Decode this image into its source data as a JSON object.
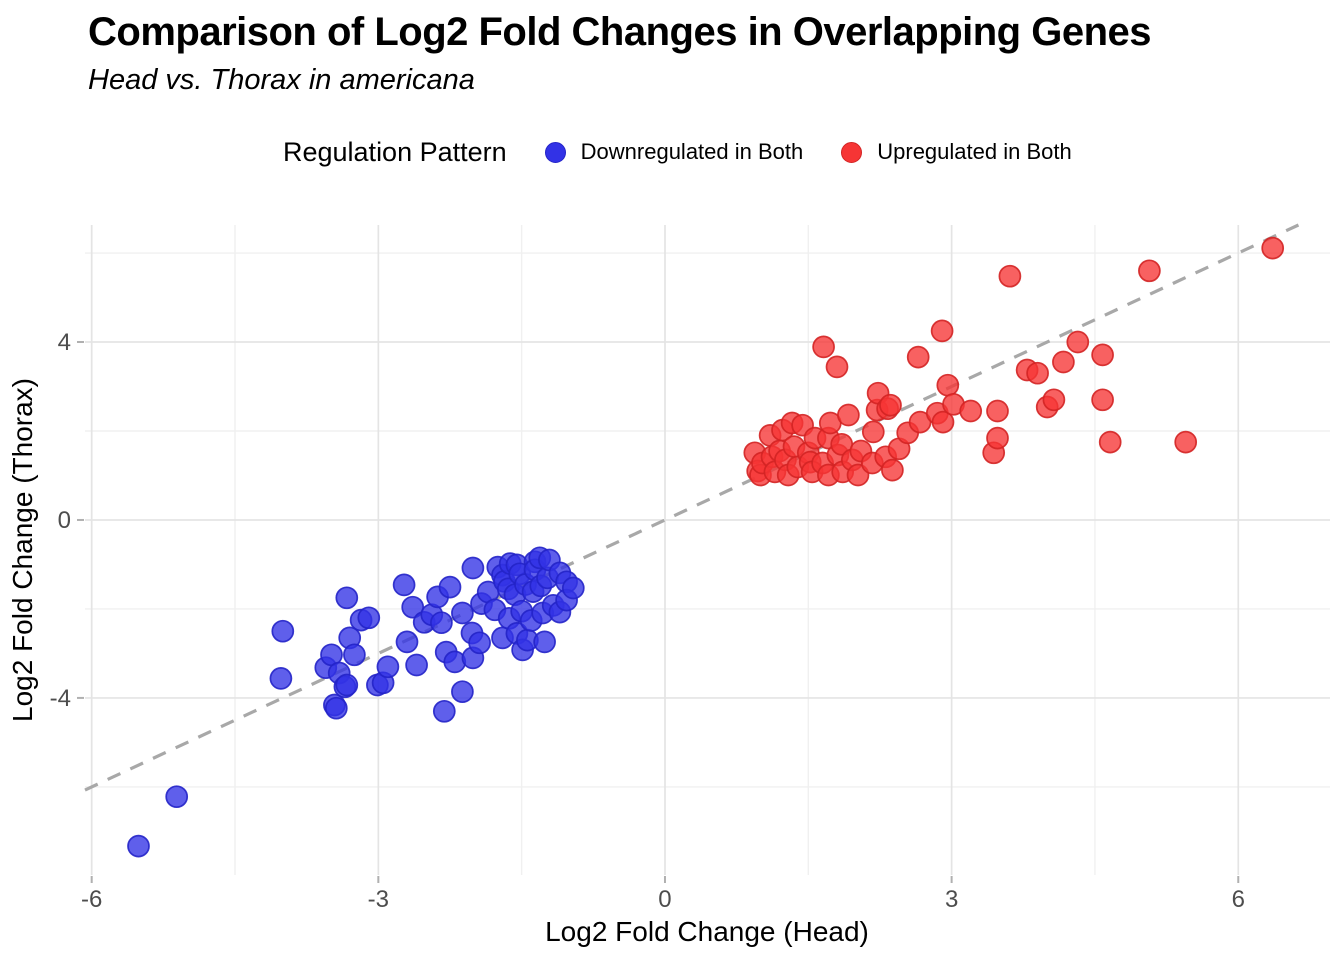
{
  "header": {
    "title": "Comparison of Log2 Fold Changes in Overlapping Genes",
    "subtitle": "Head vs. Thorax in americana"
  },
  "legend": {
    "title": "Regulation Pattern",
    "items": [
      {
        "label": "Downregulated in Both",
        "color": "#3232E6",
        "border": "#2424C8"
      },
      {
        "label": "Upregulated in Both",
        "color": "#F63535",
        "border": "#D32424"
      }
    ]
  },
  "colors": {
    "background": "#FFFFFF",
    "grid_major": "#E4E4E4",
    "grid_minor": "#F0F0F0",
    "tick_mark": "#B0B0B0",
    "tick_label": "#4D4D4D",
    "reference_line": "#A8A8A8"
  },
  "chart_data": {
    "type": "scatter",
    "title": "Comparison of Log2 Fold Changes in Overlapping Genes",
    "subtitle": "Head vs. Thorax in americana",
    "xlabel": "Log2 Fold Change (Head)",
    "ylabel": "Log2 Fold Change (Thorax)",
    "xlim": [
      -6.07,
      6.96
    ],
    "ylim": [
      -7.98,
      6.63
    ],
    "x_ticks": [
      -6,
      -3,
      0,
      3,
      6
    ],
    "y_ticks": [
      -4,
      0,
      4
    ],
    "x_minor_ticks": [
      -4.5,
      -1.5,
      1.5,
      4.5
    ],
    "y_minor_ticks": [
      -6,
      -2,
      2,
      6
    ],
    "grid": true,
    "legend_position": "top",
    "reference_line": {
      "style": "dashed",
      "slope": 1,
      "intercept": 0
    },
    "point_radius_px": 10.5,
    "point_fill_opacity": 0.78,
    "series": [
      {
        "name": "Downregulated in Both",
        "color": "#3232E6",
        "stroke": "#2424C8",
        "points": [
          [
            -5.51,
            -7.33
          ],
          [
            -5.11,
            -6.22
          ],
          [
            -4.0,
            -2.5
          ],
          [
            -4.02,
            -3.56
          ],
          [
            -3.55,
            -3.32
          ],
          [
            -3.49,
            -3.03
          ],
          [
            -3.46,
            -4.16
          ],
          [
            -3.44,
            -4.23
          ],
          [
            -3.41,
            -3.44
          ],
          [
            -3.35,
            -3.75
          ],
          [
            -3.33,
            -1.75
          ],
          [
            -3.33,
            -3.71
          ],
          [
            -3.3,
            -2.65
          ],
          [
            -3.25,
            -3.03
          ],
          [
            -3.18,
            -2.25
          ],
          [
            -3.1,
            -2.2
          ],
          [
            -3.01,
            -3.71
          ],
          [
            -2.95,
            -3.66
          ],
          [
            -2.9,
            -3.3
          ],
          [
            -2.73,
            -1.46
          ],
          [
            -2.7,
            -2.74
          ],
          [
            -2.64,
            -1.96
          ],
          [
            -2.6,
            -3.26
          ],
          [
            -2.52,
            -2.3
          ],
          [
            -2.44,
            -2.13
          ],
          [
            -2.38,
            -1.73
          ],
          [
            -2.34,
            -2.31
          ],
          [
            -2.31,
            -4.3
          ],
          [
            -2.29,
            -2.97
          ],
          [
            -2.25,
            -1.51
          ],
          [
            -2.2,
            -3.19
          ],
          [
            -2.12,
            -2.09
          ],
          [
            -2.12,
            -3.86
          ],
          [
            -2.02,
            -2.54
          ],
          [
            -2.01,
            -1.08
          ],
          [
            -2.01,
            -3.1
          ],
          [
            -1.94,
            -2.76
          ],
          [
            -1.92,
            -1.88
          ],
          [
            -1.85,
            -1.62
          ],
          [
            -1.78,
            -2.02
          ],
          [
            -1.75,
            -1.06
          ],
          [
            -1.7,
            -1.24
          ],
          [
            -1.7,
            -2.65
          ],
          [
            -1.68,
            -1.38
          ],
          [
            -1.64,
            -1.55
          ],
          [
            -1.63,
            -2.21
          ],
          [
            -1.62,
            -0.98
          ],
          [
            -1.57,
            -1.68
          ],
          [
            -1.55,
            -1.01
          ],
          [
            -1.55,
            -2.55
          ],
          [
            -1.52,
            -1.21
          ],
          [
            -1.5,
            -2.05
          ],
          [
            -1.49,
            -2.92
          ],
          [
            -1.46,
            -1.45
          ],
          [
            -1.44,
            -2.7
          ],
          [
            -1.4,
            -2.26
          ],
          [
            -1.38,
            -1.61
          ],
          [
            -1.36,
            -0.94
          ],
          [
            -1.36,
            -1.12
          ],
          [
            -1.31,
            -0.85
          ],
          [
            -1.3,
            -1.48
          ],
          [
            -1.28,
            -2.09
          ],
          [
            -1.26,
            -2.74
          ],
          [
            -1.23,
            -1.3
          ],
          [
            -1.21,
            -0.9
          ],
          [
            -1.17,
            -1.92
          ],
          [
            -1.1,
            -1.19
          ],
          [
            -1.1,
            -2.07
          ],
          [
            -1.03,
            -1.39
          ],
          [
            -1.03,
            -1.8
          ],
          [
            -0.96,
            -1.53
          ]
        ]
      },
      {
        "name": "Upregulated in Both",
        "color": "#F63535",
        "stroke": "#D32424",
        "points": [
          [
            0.94,
            1.51
          ],
          [
            0.97,
            1.1
          ],
          [
            1.0,
            1.01
          ],
          [
            1.02,
            1.28
          ],
          [
            1.1,
            1.9
          ],
          [
            1.12,
            1.42
          ],
          [
            1.15,
            1.08
          ],
          [
            1.2,
            1.55
          ],
          [
            1.23,
            2.02
          ],
          [
            1.26,
            1.35
          ],
          [
            1.29,
            1.01
          ],
          [
            1.33,
            2.18
          ],
          [
            1.35,
            1.65
          ],
          [
            1.39,
            1.19
          ],
          [
            1.44,
            2.13
          ],
          [
            1.5,
            1.51
          ],
          [
            1.52,
            1.3
          ],
          [
            1.54,
            1.08
          ],
          [
            1.57,
            1.84
          ],
          [
            1.65,
            1.28
          ],
          [
            1.66,
            3.89
          ],
          [
            1.71,
            1.01
          ],
          [
            1.71,
            1.84
          ],
          [
            1.73,
            2.18
          ],
          [
            1.8,
            3.44
          ],
          [
            1.81,
            1.46
          ],
          [
            1.85,
            1.7
          ],
          [
            1.86,
            1.08
          ],
          [
            1.92,
            2.36
          ],
          [
            1.96,
            1.35
          ],
          [
            2.02,
            1.01
          ],
          [
            2.05,
            1.55
          ],
          [
            2.17,
            1.28
          ],
          [
            2.18,
            1.98
          ],
          [
            2.22,
            2.47
          ],
          [
            2.23,
            2.85
          ],
          [
            2.31,
            1.42
          ],
          [
            2.33,
            2.5
          ],
          [
            2.36,
            2.58
          ],
          [
            2.38,
            1.12
          ],
          [
            2.45,
            1.6
          ],
          [
            2.54,
            1.96
          ],
          [
            2.65,
            3.66
          ],
          [
            2.67,
            2.2
          ],
          [
            2.85,
            2.4
          ],
          [
            2.9,
            4.25
          ],
          [
            2.91,
            2.2
          ],
          [
            2.96,
            3.03
          ],
          [
            3.02,
            2.6
          ],
          [
            3.2,
            2.45
          ],
          [
            3.44,
            1.51
          ],
          [
            3.48,
            1.84
          ],
          [
            3.48,
            2.45
          ],
          [
            3.61,
            5.48
          ],
          [
            3.79,
            3.37
          ],
          [
            3.9,
            3.3
          ],
          [
            4.0,
            2.54
          ],
          [
            4.07,
            2.7
          ],
          [
            4.17,
            3.55
          ],
          [
            4.32,
            4.0
          ],
          [
            4.58,
            2.7
          ],
          [
            4.58,
            3.71
          ],
          [
            4.66,
            1.75
          ],
          [
            5.07,
            5.6
          ],
          [
            5.45,
            1.75
          ],
          [
            6.36,
            6.11
          ]
        ]
      }
    ]
  }
}
